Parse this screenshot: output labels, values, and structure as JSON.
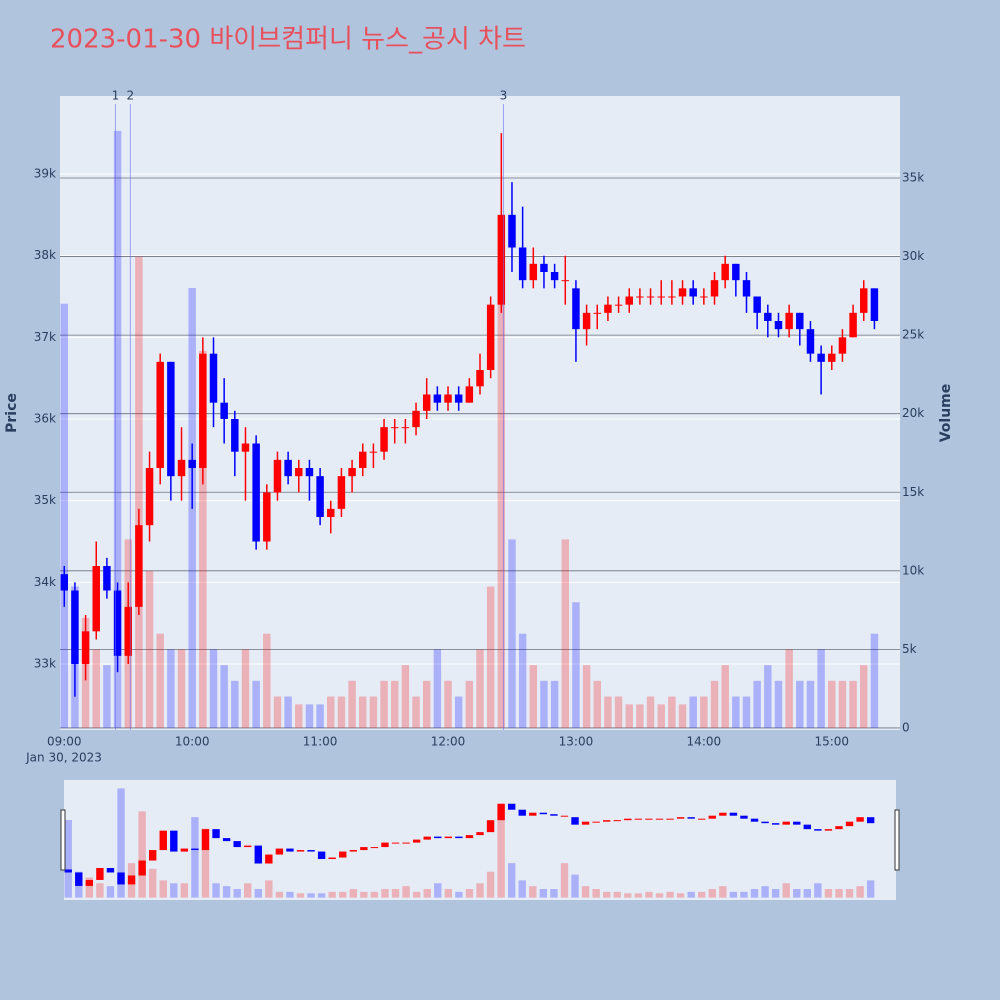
{
  "chart_data": {
    "type": "candlestick",
    "title": "2023-01-30 바이브컴퍼니 뉴스_공시 차트",
    "y_label": "Price",
    "y2_label": "Volume",
    "x_sublabel": "Jan 30, 2023",
    "x": [
      "09:00",
      "09:05",
      "09:10",
      "09:15",
      "09:20",
      "09:25",
      "09:30",
      "09:35",
      "09:40",
      "09:45",
      "09:50",
      "09:55",
      "10:00",
      "10:05",
      "10:10",
      "10:15",
      "10:20",
      "10:25",
      "10:30",
      "10:35",
      "10:40",
      "10:45",
      "10:50",
      "10:55",
      "11:00",
      "11:05",
      "11:10",
      "11:15",
      "11:20",
      "11:25",
      "11:30",
      "11:35",
      "11:40",
      "11:45",
      "11:50",
      "11:55",
      "12:00",
      "12:05",
      "12:10",
      "12:15",
      "12:20",
      "12:25",
      "12:30",
      "12:35",
      "12:40",
      "12:45",
      "12:50",
      "12:55",
      "13:00",
      "13:05",
      "13:10",
      "13:15",
      "13:20",
      "13:25",
      "13:30",
      "13:35",
      "13:40",
      "13:45",
      "13:50",
      "13:55",
      "14:00",
      "14:05",
      "14:10",
      "14:15",
      "14:20",
      "14:25",
      "14:30",
      "14:35",
      "14:40",
      "14:45",
      "14:50",
      "14:55",
      "15:00",
      "15:05",
      "15:10",
      "15:15",
      "15:20"
    ],
    "open": [
      34100,
      33900,
      33000,
      33400,
      34200,
      33900,
      33100,
      33700,
      34700,
      35400,
      36700,
      35300,
      35500,
      35400,
      36800,
      36200,
      36000,
      35600,
      35700,
      34500,
      35100,
      35500,
      35300,
      35400,
      35300,
      34800,
      34900,
      35300,
      35400,
      35600,
      35600,
      35900,
      35900,
      35900,
      36100,
      36300,
      36200,
      36300,
      36200,
      36400,
      36600,
      37400,
      38500,
      38100,
      37700,
      37900,
      37800,
      37700,
      37600,
      37100,
      37300,
      37300,
      37400,
      37400,
      37500,
      37500,
      37500,
      37500,
      37500,
      37600,
      37500,
      37500,
      37700,
      37900,
      37700,
      37500,
      37300,
      37200,
      37100,
      37300,
      37100,
      36800,
      36700,
      36800,
      37000,
      37300,
      37600
    ],
    "high": [
      34200,
      34000,
      33600,
      34500,
      34300,
      34000,
      34000,
      34900,
      35600,
      36800,
      36700,
      35900,
      35700,
      37000,
      37000,
      36500,
      36100,
      35900,
      35800,
      35200,
      35600,
      35600,
      35500,
      35500,
      35400,
      35000,
      35400,
      35500,
      35700,
      35700,
      36000,
      36000,
      36000,
      36200,
      36500,
      36400,
      36400,
      36400,
      36500,
      36800,
      37500,
      39500,
      38900,
      38600,
      38100,
      38000,
      37900,
      38000,
      37700,
      37400,
      37400,
      37500,
      37500,
      37600,
      37600,
      37600,
      37700,
      37700,
      37700,
      37700,
      37600,
      37800,
      38000,
      37900,
      37800,
      37500,
      37400,
      37300,
      37400,
      37300,
      37200,
      36900,
      36900,
      37100,
      37400,
      37700,
      37600
    ],
    "low": [
      33700,
      32600,
      32800,
      33300,
      33800,
      32900,
      33000,
      33600,
      34500,
      35200,
      35000,
      35000,
      34900,
      35200,
      35900,
      35700,
      35300,
      35000,
      34400,
      34400,
      35000,
      35200,
      35100,
      35000,
      34700,
      34600,
      34800,
      35100,
      35300,
      35400,
      35500,
      35700,
      35700,
      35800,
      36000,
      36100,
      36100,
      36100,
      36200,
      36300,
      36500,
      37300,
      37800,
      37600,
      37600,
      37600,
      37600,
      37400,
      36700,
      36900,
      37100,
      37200,
      37300,
      37300,
      37400,
      37400,
      37400,
      37400,
      37400,
      37400,
      37400,
      37400,
      37600,
      37500,
      37300,
      37100,
      37000,
      37000,
      37000,
      36900,
      36700,
      36300,
      36600,
      36700,
      37000,
      37200,
      37100
    ],
    "close": [
      33900,
      33000,
      33400,
      34200,
      33900,
      33100,
      33700,
      34700,
      35400,
      36700,
      35300,
      35500,
      35400,
      36800,
      36200,
      36000,
      35600,
      35700,
      34500,
      35100,
      35500,
      35300,
      35400,
      35300,
      34800,
      34900,
      35300,
      35400,
      35600,
      35600,
      35900,
      35900,
      35900,
      36100,
      36300,
      36200,
      36300,
      36200,
      36400,
      36600,
      37400,
      38500,
      38100,
      37700,
      37900,
      37800,
      37700,
      37700,
      37100,
      37300,
      37300,
      37400,
      37400,
      37500,
      37500,
      37500,
      37500,
      37500,
      37600,
      37500,
      37500,
      37700,
      37900,
      37700,
      37500,
      37300,
      37200,
      37100,
      37300,
      37100,
      36800,
      36700,
      36800,
      37000,
      37300,
      37600,
      37200
    ],
    "volume": [
      27000,
      9000,
      7000,
      5000,
      4000,
      38000,
      12000,
      30000,
      10000,
      6000,
      5000,
      5000,
      28000,
      24000,
      5000,
      4000,
      3000,
      5000,
      3000,
      6000,
      2000,
      2000,
      1500,
      1500,
      1500,
      2000,
      2000,
      3000,
      2000,
      2000,
      3000,
      3000,
      4000,
      2000,
      3000,
      5000,
      3000,
      2000,
      3000,
      5000,
      9000,
      30000,
      12000,
      6000,
      4000,
      3000,
      3000,
      12000,
      8000,
      4000,
      3000,
      2000,
      2000,
      1500,
      1500,
      2000,
      1500,
      2000,
      1500,
      2000,
      2000,
      3000,
      4000,
      2000,
      2000,
      3000,
      4000,
      3000,
      5000,
      3000,
      3000,
      5000,
      3000,
      3000,
      3000,
      4000,
      6000
    ],
    "up_color": "#ff0000",
    "down_color": "#0000ff",
    "annotations": [
      {
        "x": "09:24",
        "text": "1"
      },
      {
        "x": "09:31",
        "text": "2"
      },
      {
        "x": "12:26",
        "text": "3"
      }
    ],
    "xlim": [
      "08:58",
      "15:32"
    ],
    "xticks": [
      "09:00",
      "10:00",
      "11:00",
      "12:00",
      "13:00",
      "14:00",
      "15:00"
    ],
    "ylim": [
      32192,
      39955
    ],
    "yticks": [
      {
        "value": 33000,
        "label": "33k"
      },
      {
        "value": 34000,
        "label": "34k"
      },
      {
        "value": 35000,
        "label": "35k"
      },
      {
        "value": 36000,
        "label": "36k"
      },
      {
        "value": 37000,
        "label": "37k"
      },
      {
        "value": 38000,
        "label": "38k"
      },
      {
        "value": 39000,
        "label": "39k"
      }
    ],
    "y2lim": [
      -130,
      40220
    ],
    "y2ticks": [
      0,
      {
        "value": 5000,
        "label": "5k"
      },
      {
        "value": 10000,
        "label": "10k"
      },
      {
        "value": 15000,
        "label": "15k"
      },
      {
        "value": 20000,
        "label": "20k"
      },
      {
        "value": 25000,
        "label": "25k"
      },
      {
        "value": 30000,
        "label": "30k"
      },
      {
        "value": 35000,
        "label": "35k"
      }
    ],
    "grid": true
  }
}
